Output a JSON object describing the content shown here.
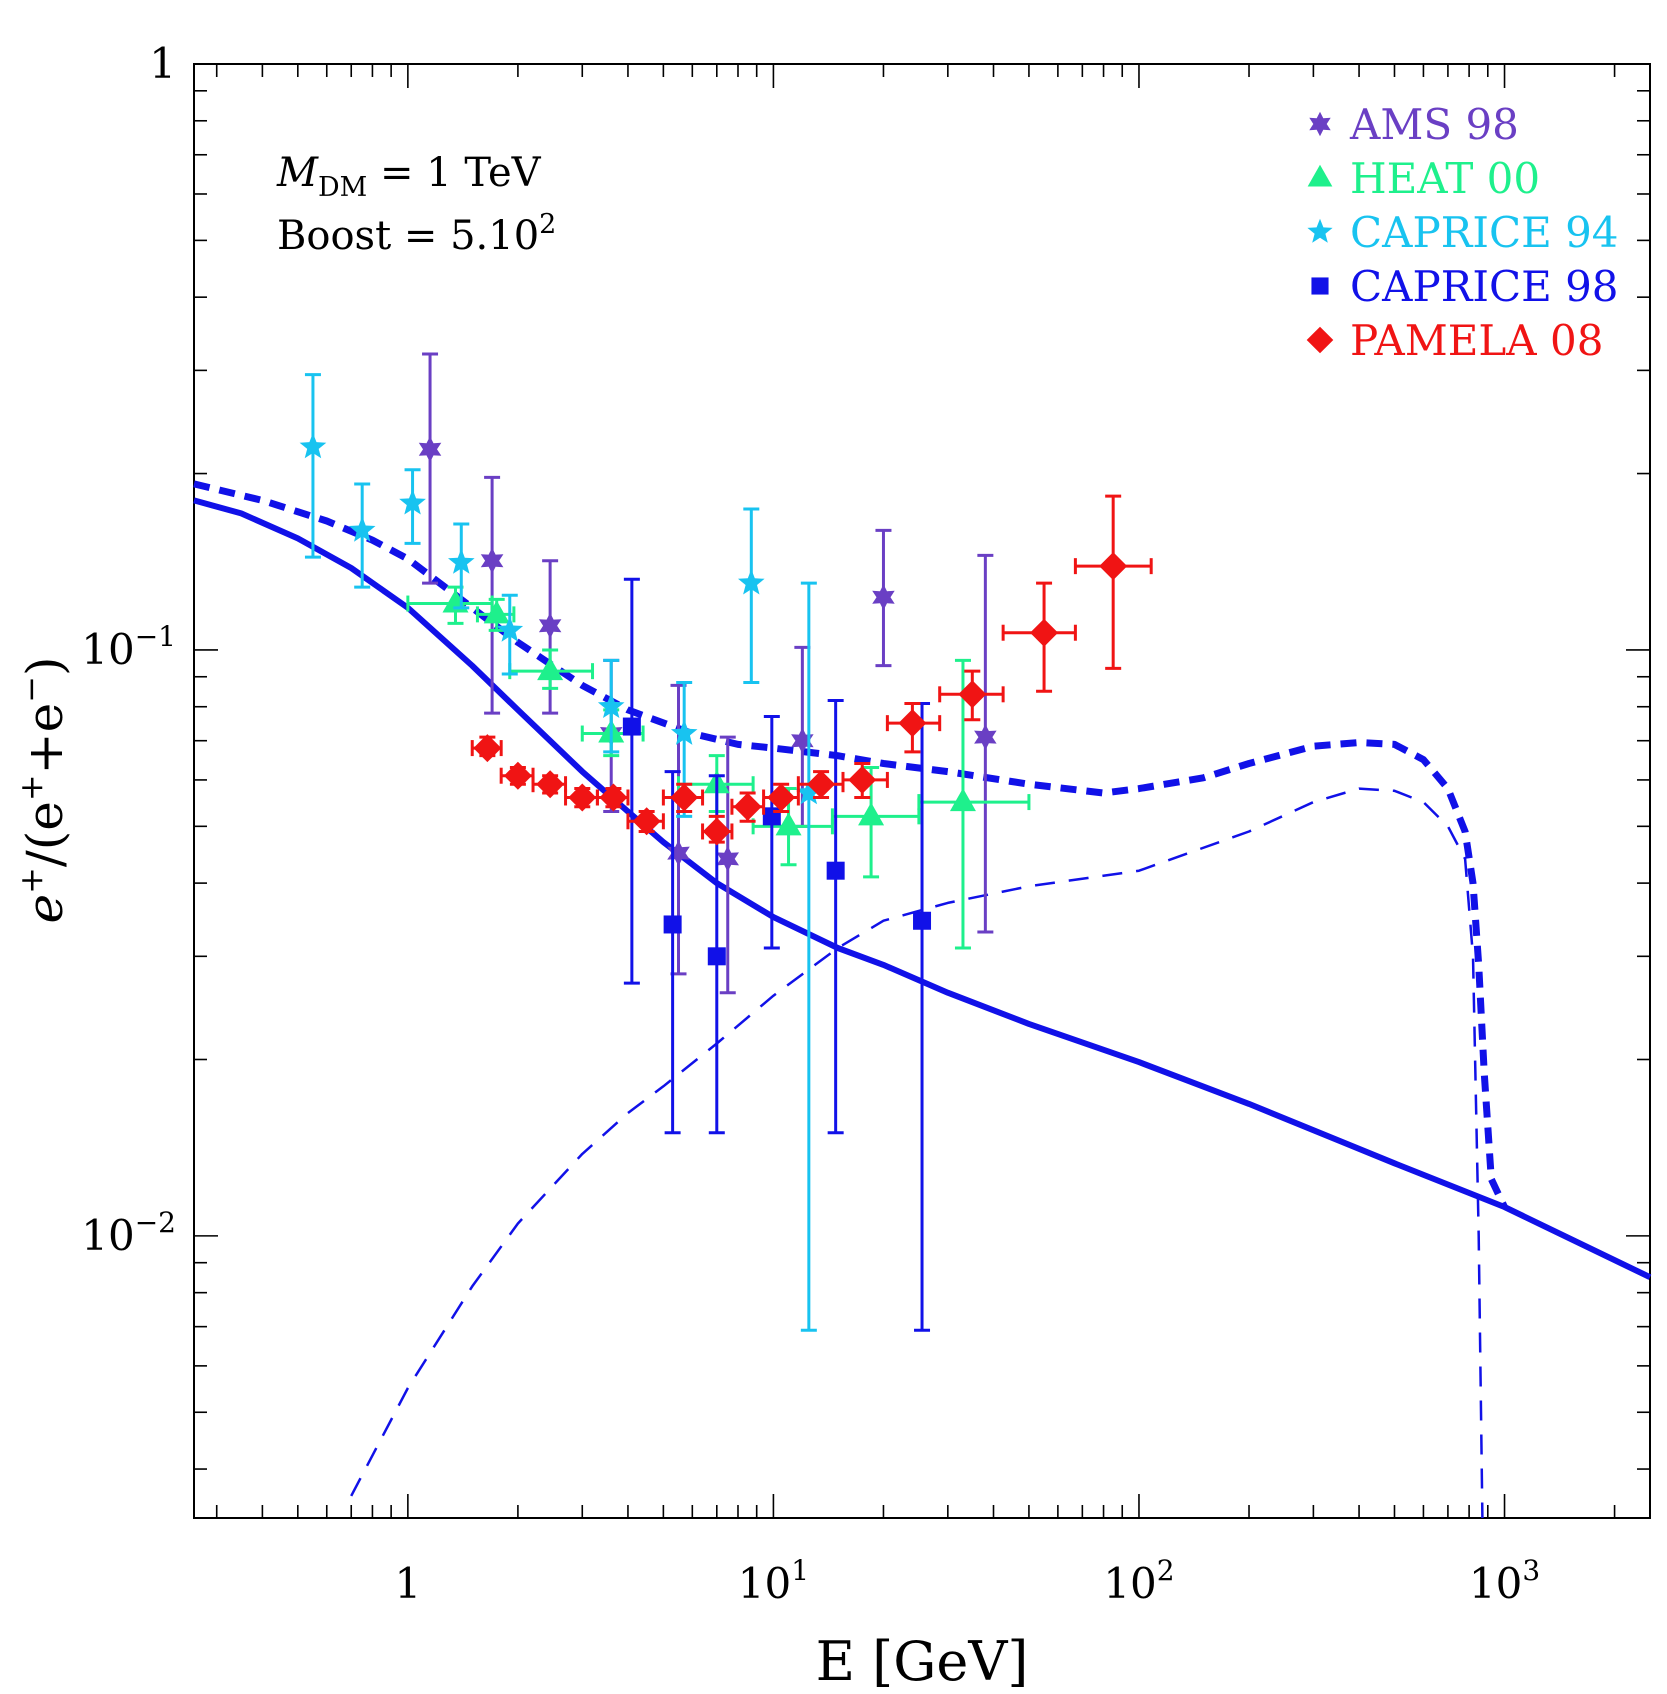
{
  "chart_data": {
    "type": "scatter",
    "xlabel": "E [GeV]",
    "ylabel": {
      "base": "e",
      "sup1": "+",
      "mid": "/(e",
      "sup2": "+",
      "plus": "+e",
      "sup3": "−",
      "close": ")"
    },
    "x_scale": "log",
    "y_scale": "log",
    "xlim": [
      0.26,
      2500
    ],
    "ylim": [
      0.0033,
      1.0
    ],
    "grid": false,
    "legend_position": "top-right",
    "x_ticks": [
      {
        "value": 1,
        "base": "1",
        "exp": ""
      },
      {
        "value": 10,
        "base": "10",
        "exp": "1"
      },
      {
        "value": 100,
        "base": "10",
        "exp": "2"
      },
      {
        "value": 1000,
        "base": "10",
        "exp": "3"
      }
    ],
    "y_ticks": [
      {
        "value": 1,
        "base": "1",
        "exp": ""
      },
      {
        "value": 0.1,
        "base": "10",
        "exp": "−1"
      },
      {
        "value": 0.01,
        "base": "10",
        "exp": "−2"
      }
    ],
    "annotations": {
      "mass_symbol": "M",
      "mass_sub": "DM",
      "mass_value": " = 1 TeV",
      "boost_text": "Boost = 5.10",
      "boost_exp": "2"
    },
    "series": [
      {
        "name": "AMS 98",
        "color": "#6a3fc4",
        "marker": "star6",
        "points": [
          {
            "x": 1.15,
            "y": 0.22,
            "ylo": 0.13,
            "yhi": 0.32
          },
          {
            "x": 1.7,
            "y": 0.142,
            "ylo": 0.078,
            "yhi": 0.197
          },
          {
            "x": 2.45,
            "y": 0.11,
            "ylo": 0.078,
            "yhi": 0.142
          },
          {
            "x": 3.6,
            "y": 0.072,
            "ylo": 0.053,
            "yhi": 0.096
          },
          {
            "x": 5.5,
            "y": 0.045,
            "ylo": 0.028,
            "yhi": 0.087
          },
          {
            "x": 7.5,
            "y": 0.044,
            "ylo": 0.026,
            "yhi": 0.071
          },
          {
            "x": 12,
            "y": 0.07,
            "ylo": 0.05,
            "yhi": 0.101
          },
          {
            "x": 20,
            "y": 0.123,
            "ylo": 0.094,
            "yhi": 0.16
          },
          {
            "x": 38,
            "y": 0.071,
            "ylo": 0.033,
            "yhi": 0.145
          }
        ]
      },
      {
        "name": "HEAT 00",
        "color": "#1ef08c",
        "marker": "triangle",
        "points": [
          {
            "x": 1.35,
            "y": 0.12,
            "xlo": 1.0,
            "xhi": 1.7,
            "ylo": 0.111,
            "yhi": 0.128
          },
          {
            "x": 1.75,
            "y": 0.115,
            "xlo": 1.55,
            "xhi": 1.95,
            "ylo": 0.108,
            "yhi": 0.122
          },
          {
            "x": 2.45,
            "y": 0.092,
            "xlo": 1.9,
            "xhi": 3.2,
            "ylo": 0.086,
            "yhi": 0.1
          },
          {
            "x": 3.6,
            "y": 0.072,
            "xlo": 3.0,
            "xhi": 4.4,
            "ylo": 0.066,
            "yhi": 0.079
          },
          {
            "x": 7.0,
            "y": 0.059,
            "xlo": 5.5,
            "xhi": 8.8,
            "ylo": 0.053,
            "yhi": 0.066
          },
          {
            "x": 11,
            "y": 0.05,
            "xlo": 8.8,
            "xhi": 14.5,
            "ylo": 0.043,
            "yhi": 0.058
          },
          {
            "x": 18.5,
            "y": 0.052,
            "xlo": 14.5,
            "xhi": 25,
            "ylo": 0.041,
            "yhi": 0.063
          },
          {
            "x": 33,
            "y": 0.055,
            "xlo": 25,
            "xhi": 50,
            "ylo": 0.031,
            "yhi": 0.096
          }
        ]
      },
      {
        "name": "CAPRICE 94",
        "color": "#18c3f0",
        "marker": "star5",
        "points": [
          {
            "x": 0.55,
            "y": 0.222,
            "ylo": 0.144,
            "yhi": 0.295
          },
          {
            "x": 0.75,
            "y": 0.16,
            "ylo": 0.128,
            "yhi": 0.192
          },
          {
            "x": 1.03,
            "y": 0.178,
            "ylo": 0.152,
            "yhi": 0.203
          },
          {
            "x": 1.4,
            "y": 0.141,
            "ylo": 0.118,
            "yhi": 0.164
          },
          {
            "x": 1.9,
            "y": 0.108,
            "ylo": 0.091,
            "yhi": 0.124
          },
          {
            "x": 3.6,
            "y": 0.08,
            "ylo": 0.067,
            "yhi": 0.096
          },
          {
            "x": 5.7,
            "y": 0.072,
            "ylo": 0.052,
            "yhi": 0.088
          },
          {
            "x": 8.7,
            "y": 0.13,
            "ylo": 0.088,
            "yhi": 0.174
          },
          {
            "x": 12.5,
            "y": 0.057,
            "ylo": 0.0069,
            "yhi": 0.13
          }
        ]
      },
      {
        "name": "CAPRICE 98",
        "color": "#1111e8",
        "marker": "square",
        "points": [
          {
            "x": 4.1,
            "y": 0.074,
            "ylo": 0.027,
            "yhi": 0.132
          },
          {
            "x": 5.3,
            "y": 0.034,
            "ylo": 0.015,
            "yhi": 0.062
          },
          {
            "x": 7.0,
            "y": 0.03,
            "ylo": 0.015,
            "yhi": 0.061
          },
          {
            "x": 9.9,
            "y": 0.052,
            "ylo": 0.031,
            "yhi": 0.077
          },
          {
            "x": 14.8,
            "y": 0.042,
            "ylo": 0.015,
            "yhi": 0.082
          },
          {
            "x": 25.5,
            "y": 0.0345,
            "ylo": 0.0069,
            "yhi": 0.081
          }
        ]
      },
      {
        "name": "PAMELA 08",
        "color": "#f01414",
        "marker": "diamond",
        "points": [
          {
            "x": 1.65,
            "y": 0.068,
            "xlo": 1.5,
            "xhi": 1.8,
            "ylo": 0.066,
            "yhi": 0.071
          },
          {
            "x": 2.0,
            "y": 0.061,
            "xlo": 1.8,
            "xhi": 2.2,
            "ylo": 0.059,
            "yhi": 0.063
          },
          {
            "x": 2.45,
            "y": 0.059,
            "xlo": 2.2,
            "xhi": 2.7,
            "ylo": 0.057,
            "yhi": 0.061
          },
          {
            "x": 3.0,
            "y": 0.056,
            "xlo": 2.7,
            "xhi": 3.3,
            "ylo": 0.054,
            "yhi": 0.058
          },
          {
            "x": 3.65,
            "y": 0.056,
            "xlo": 3.3,
            "xhi": 4.0,
            "ylo": 0.054,
            "yhi": 0.058
          },
          {
            "x": 4.5,
            "y": 0.051,
            "xlo": 4.0,
            "xhi": 5.0,
            "ylo": 0.049,
            "yhi": 0.053
          },
          {
            "x": 5.7,
            "y": 0.056,
            "xlo": 5.0,
            "xhi": 6.4,
            "ylo": 0.053,
            "yhi": 0.059
          },
          {
            "x": 7.0,
            "y": 0.049,
            "xlo": 6.4,
            "xhi": 7.7,
            "ylo": 0.047,
            "yhi": 0.052
          },
          {
            "x": 8.5,
            "y": 0.054,
            "xlo": 7.7,
            "xhi": 9.4,
            "ylo": 0.051,
            "yhi": 0.057
          },
          {
            "x": 10.5,
            "y": 0.056,
            "xlo": 9.4,
            "xhi": 11.7,
            "ylo": 0.053,
            "yhi": 0.059
          },
          {
            "x": 13.5,
            "y": 0.059,
            "xlo": 11.7,
            "xhi": 15.5,
            "ylo": 0.056,
            "yhi": 0.062
          },
          {
            "x": 17.5,
            "y": 0.06,
            "xlo": 15.5,
            "xhi": 20.5,
            "ylo": 0.056,
            "yhi": 0.064
          },
          {
            "x": 24,
            "y": 0.075,
            "xlo": 20.5,
            "xhi": 28.5,
            "ylo": 0.067,
            "yhi": 0.081
          },
          {
            "x": 35,
            "y": 0.084,
            "xlo": 28.5,
            "xhi": 42.5,
            "ylo": 0.076,
            "yhi": 0.092
          },
          {
            "x": 55,
            "y": 0.107,
            "xlo": 42.5,
            "xhi": 67,
            "ylo": 0.085,
            "yhi": 0.13
          },
          {
            "x": 85,
            "y": 0.139,
            "xlo": 67,
            "xhi": 108,
            "ylo": 0.093,
            "yhi": 0.183
          }
        ]
      }
    ],
    "curves": [
      {
        "style": "solid",
        "color": "#1111e8",
        "x": [
          0.26,
          0.35,
          0.5,
          0.7,
          1.0,
          1.5,
          2.0,
          3.0,
          4.0,
          5.0,
          7.0,
          10,
          15,
          20,
          30,
          50,
          100,
          200,
          500,
          1000,
          2500
        ],
        "y": [
          0.18,
          0.171,
          0.155,
          0.138,
          0.118,
          0.094,
          0.079,
          0.062,
          0.053,
          0.047,
          0.04,
          0.035,
          0.031,
          0.029,
          0.026,
          0.023,
          0.0198,
          0.0168,
          0.0133,
          0.0112,
          0.0085
        ]
      },
      {
        "style": "dashed-thick",
        "color": "#1111e8",
        "x": [
          0.26,
          0.4,
          0.6,
          0.8,
          1.0,
          1.5,
          2.0,
          3.0,
          4.0,
          6.0,
          8.0,
          10,
          15,
          20,
          30,
          50,
          80,
          100,
          150,
          200,
          300,
          400,
          500,
          600,
          700,
          780,
          820,
          850,
          880,
          920,
          1000
        ],
        "y": [
          0.192,
          0.18,
          0.166,
          0.154,
          0.143,
          0.118,
          0.103,
          0.087,
          0.079,
          0.072,
          0.069,
          0.068,
          0.066,
          0.064,
          0.062,
          0.059,
          0.057,
          0.058,
          0.0605,
          0.064,
          0.0685,
          0.0695,
          0.069,
          0.065,
          0.058,
          0.049,
          0.04,
          0.029,
          0.019,
          0.0125,
          0.0112
        ]
      },
      {
        "style": "dashed-thin",
        "color": "#1111e8",
        "x": [
          0.7,
          1.0,
          1.5,
          2.0,
          3.0,
          4.0,
          5.0,
          7.0,
          10,
          15,
          20,
          30,
          50,
          100,
          200,
          300,
          400,
          500,
          600,
          700,
          780,
          820,
          850,
          870
        ],
        "y": [
          0.0036,
          0.0055,
          0.0082,
          0.0105,
          0.0138,
          0.0162,
          0.018,
          0.0213,
          0.0257,
          0.031,
          0.0345,
          0.037,
          0.0395,
          0.042,
          0.049,
          0.055,
          0.058,
          0.0575,
          0.055,
          0.05,
          0.044,
          0.03,
          0.01,
          0.0033
        ]
      }
    ]
  }
}
